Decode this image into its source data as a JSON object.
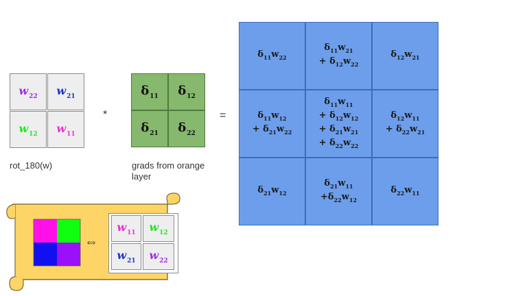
{
  "colors": {
    "w22": "#a22ee6",
    "w21": "#1a37c7",
    "w12": "#22e622",
    "w11": "#ee2ed6",
    "swatch_magenta": "#ff10e8",
    "swatch_green": "#10ff10",
    "swatch_blue": "#1010f0",
    "swatch_purple": "#9a10f8",
    "delta_grid": "#86b86d",
    "result_grid": "#6d9eeb",
    "scroll": "#fdd567"
  },
  "rot_grid": {
    "caption": "rot_180(w)",
    "cells": [
      {
        "base": "w",
        "sub": "22",
        "color": "#a22ee6"
      },
      {
        "base": "w",
        "sub": "21",
        "color": "#1a37c7"
      },
      {
        "base": "w",
        "sub": "12",
        "color": "#22e622"
      },
      {
        "base": "w",
        "sub": "11",
        "color": "#ee2ed6"
      }
    ]
  },
  "operators": {
    "conv": "*",
    "equals": "=",
    "equiv": "⇔"
  },
  "delta_grid": {
    "caption_line1": "grads from orange",
    "caption_line2": "layer",
    "cells": [
      {
        "base": "δ",
        "sub": "11"
      },
      {
        "base": "δ",
        "sub": "12"
      },
      {
        "base": "δ",
        "sub": "21"
      },
      {
        "base": "δ",
        "sub": "22"
      }
    ]
  },
  "result_grid": {
    "cells": [
      [
        [
          {
            "p": "",
            "d": "11",
            "w": "22"
          }
        ],
        [
          {
            "p": "",
            "d": "11",
            "w": "21"
          },
          {
            "p": "+ ",
            "d": "12",
            "w": "22"
          }
        ],
        [
          {
            "p": "",
            "d": "12",
            "w": "21"
          }
        ]
      ],
      [
        [
          {
            "p": "",
            "d": "11",
            "w": "12"
          },
          {
            "p": "+ ",
            "d": "21",
            "w": "22"
          }
        ],
        [
          {
            "p": "",
            "d": "11",
            "w": "11"
          },
          {
            "p": "+ ",
            "d": "12",
            "w": "12"
          },
          {
            "p": "+ ",
            "d": "21",
            "w": "21"
          },
          {
            "p": "+ ",
            "d": "22",
            "w": "22"
          }
        ],
        [
          {
            "p": "",
            "d": "12",
            "w": "11"
          },
          {
            "p": "+ ",
            "d": "22",
            "w": "21"
          }
        ]
      ],
      [
        [
          {
            "p": "",
            "d": "21",
            "w": "12"
          }
        ],
        [
          {
            "p": "",
            "d": "21",
            "w": "11"
          },
          {
            "p": "+",
            "d": "22",
            "w": "12"
          }
        ],
        [
          {
            "p": "",
            "d": "22",
            "w": "11"
          }
        ]
      ]
    ]
  },
  "legend": {
    "cells": [
      {
        "base": "w",
        "sub": "11",
        "color": "#ee2ed6"
      },
      {
        "base": "w",
        "sub": "12",
        "color": "#22e622"
      },
      {
        "base": "w",
        "sub": "21",
        "color": "#1a37c7"
      },
      {
        "base": "w",
        "sub": "22",
        "color": "#a22ee6"
      }
    ]
  }
}
